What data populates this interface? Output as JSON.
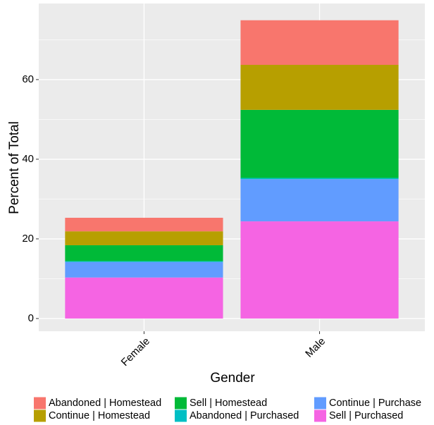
{
  "chart_data": {
    "type": "stacked-bar",
    "x_label": "Gender",
    "y_label": "Percent of Total",
    "categories": [
      "Female",
      "Male"
    ],
    "series": [
      {
        "name": "Abandoned | Homestead",
        "color": "#F8766D",
        "values": [
          3.4,
          11.2
        ]
      },
      {
        "name": "Continue | Homestead",
        "color": "#B79F00",
        "values": [
          3.5,
          11.3
        ]
      },
      {
        "name": "Sell | Homestead",
        "color": "#00BA38",
        "values": [
          4.0,
          17.1
        ]
      },
      {
        "name": "Abandoned | Purchased",
        "color": "#00BFC4",
        "values": [
          0.2,
          0.3
        ]
      },
      {
        "name": "Continue | Purchase",
        "color": "#619CFF",
        "values": [
          3.9,
          10.6
        ]
      },
      {
        "name": "Sell | Purchased",
        "color": "#F564E3",
        "values": [
          10.3,
          24.4
        ]
      }
    ],
    "ylim": [
      -3.2,
      79.1
    ],
    "yticks": [
      0,
      20,
      40,
      60
    ],
    "minor_yticks": [
      10,
      30,
      50,
      70
    ],
    "grid": true,
    "legend": "bottom"
  }
}
